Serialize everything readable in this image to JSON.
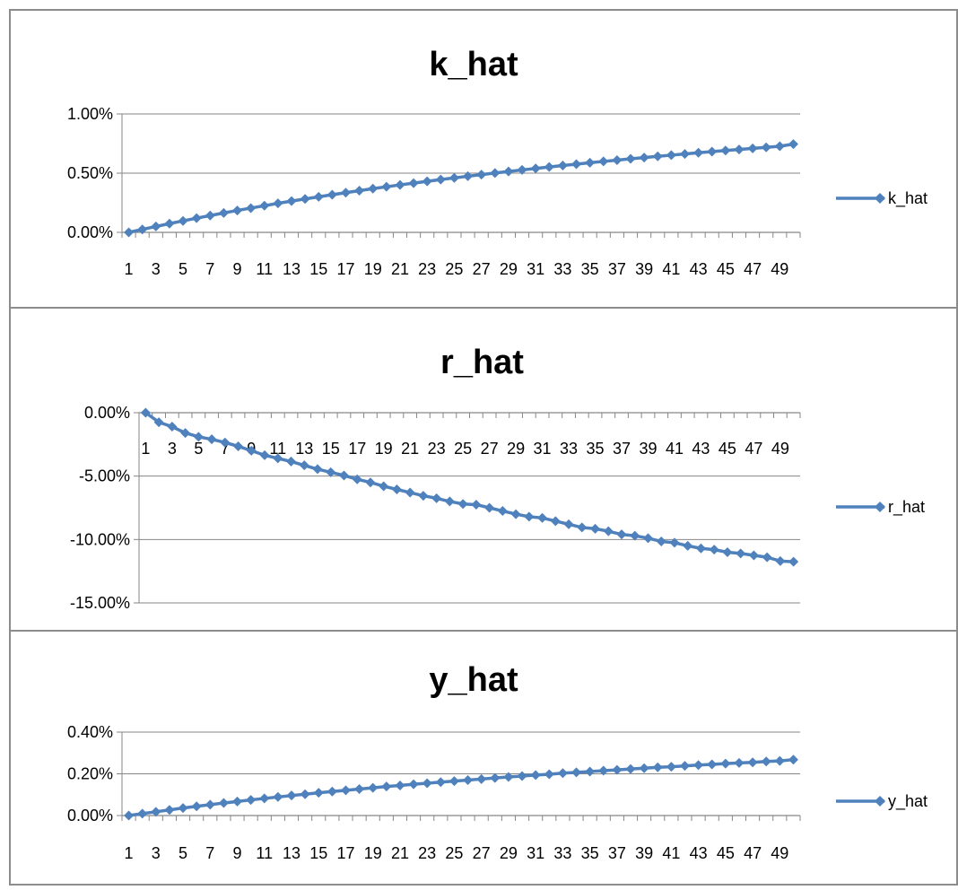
{
  "colors": {
    "series": "#4f81bd",
    "grid": "#868686",
    "axis": "#868686",
    "border": "#8c8c8c"
  },
  "chart_data": [
    {
      "type": "line",
      "title": "k_hat",
      "xlabel": "",
      "ylabel": "",
      "x_tick_labels": [
        "1",
        "3",
        "5",
        "7",
        "9",
        "11",
        "13",
        "15",
        "17",
        "19",
        "21",
        "23",
        "25",
        "27",
        "29",
        "31",
        "33",
        "35",
        "37",
        "39",
        "41",
        "43",
        "45",
        "47",
        "49"
      ],
      "y_tick_labels": [
        "1.00%",
        "0.50%",
        "0.00%"
      ],
      "ylim": [
        0,
        1.0
      ],
      "y_ticks": [
        1.0,
        0.5,
        0.0
      ],
      "y_unit": "percent",
      "grid": true,
      "legend": "right",
      "series": [
        {
          "name": "k_hat",
          "marker": "diamond",
          "x": [
            1,
            2,
            3,
            4,
            5,
            6,
            7,
            8,
            9,
            10,
            11,
            12,
            13,
            14,
            15,
            16,
            17,
            18,
            19,
            20,
            21,
            22,
            23,
            24,
            25,
            26,
            27,
            28,
            29,
            30,
            31,
            32,
            33,
            34,
            35,
            36,
            37,
            38,
            39,
            40,
            41,
            42,
            43,
            44,
            45,
            46,
            47,
            48,
            49,
            50
          ],
          "values": [
            0.0,
            0.025,
            0.05,
            0.074,
            0.097,
            0.12,
            0.142,
            0.164,
            0.185,
            0.205,
            0.225,
            0.245,
            0.264,
            0.282,
            0.3,
            0.318,
            0.335,
            0.352,
            0.369,
            0.385,
            0.401,
            0.416,
            0.431,
            0.446,
            0.46,
            0.474,
            0.488,
            0.501,
            0.514,
            0.527,
            0.54,
            0.552,
            0.564,
            0.576,
            0.588,
            0.599,
            0.61,
            0.621,
            0.632,
            0.642,
            0.652,
            0.662,
            0.672,
            0.682,
            0.691,
            0.7,
            0.709,
            0.718,
            0.727,
            0.745
          ]
        }
      ]
    },
    {
      "type": "line",
      "title": "r_hat",
      "xlabel": "",
      "ylabel": "",
      "x_tick_labels": [
        "1",
        "3",
        "5",
        "7",
        "9",
        "11",
        "13",
        "15",
        "17",
        "19",
        "21",
        "23",
        "25",
        "27",
        "29",
        "31",
        "33",
        "35",
        "37",
        "39",
        "41",
        "43",
        "45",
        "47",
        "49"
      ],
      "y_tick_labels": [
        "0.00%",
        "-5.00%",
        "-10.00%",
        "-15.00%"
      ],
      "ylim": [
        -15.0,
        0.0
      ],
      "y_ticks": [
        0.0,
        -5.0,
        -10.0,
        -15.0
      ],
      "y_unit": "percent",
      "grid": true,
      "legend": "right",
      "series": [
        {
          "name": "r_hat",
          "marker": "diamond",
          "x": [
            1,
            2,
            3,
            4,
            5,
            6,
            7,
            8,
            9,
            10,
            11,
            12,
            13,
            14,
            15,
            16,
            17,
            18,
            19,
            20,
            21,
            22,
            23,
            24,
            25,
            26,
            27,
            28,
            29,
            30,
            31,
            32,
            33,
            34,
            35,
            36,
            37,
            38,
            39,
            40,
            41,
            42,
            43,
            44,
            45,
            46,
            47,
            48,
            49,
            50
          ],
          "values": [
            0.0,
            -0.75,
            -1.1,
            -1.6,
            -1.9,
            -2.1,
            -2.35,
            -2.65,
            -3.0,
            -3.35,
            -3.6,
            -3.85,
            -4.15,
            -4.45,
            -4.7,
            -4.95,
            -5.25,
            -5.5,
            -5.8,
            -6.05,
            -6.3,
            -6.55,
            -6.75,
            -7.0,
            -7.2,
            -7.25,
            -7.5,
            -7.75,
            -8.0,
            -8.2,
            -8.3,
            -8.55,
            -8.8,
            -9.05,
            -9.15,
            -9.35,
            -9.6,
            -9.7,
            -9.9,
            -10.15,
            -10.25,
            -10.5,
            -10.7,
            -10.8,
            -11.0,
            -11.1,
            -11.25,
            -11.4,
            -11.7,
            -11.75
          ]
        }
      ]
    },
    {
      "type": "line",
      "title": "y_hat",
      "xlabel": "",
      "ylabel": "",
      "x_tick_labels": [
        "1",
        "3",
        "5",
        "7",
        "9",
        "11",
        "13",
        "15",
        "17",
        "19",
        "21",
        "23",
        "25",
        "27",
        "29",
        "31",
        "33",
        "35",
        "37",
        "39",
        "41",
        "43",
        "45",
        "47",
        "49"
      ],
      "y_tick_labels": [
        "0.40%",
        "0.20%",
        "0.00%"
      ],
      "ylim": [
        0,
        0.4
      ],
      "y_ticks": [
        0.4,
        0.2,
        0.0
      ],
      "y_unit": "percent",
      "grid": true,
      "legend": "right",
      "series": [
        {
          "name": "y_hat",
          "marker": "diamond",
          "x": [
            1,
            2,
            3,
            4,
            5,
            6,
            7,
            8,
            9,
            10,
            11,
            12,
            13,
            14,
            15,
            16,
            17,
            18,
            19,
            20,
            21,
            22,
            23,
            24,
            25,
            26,
            27,
            28,
            29,
            30,
            31,
            32,
            33,
            34,
            35,
            36,
            37,
            38,
            39,
            40,
            41,
            42,
            43,
            44,
            45,
            46,
            47,
            48,
            49,
            50
          ],
          "values": [
            0.0,
            0.009,
            0.018,
            0.027,
            0.036,
            0.044,
            0.052,
            0.06,
            0.067,
            0.075,
            0.082,
            0.089,
            0.096,
            0.102,
            0.109,
            0.115,
            0.121,
            0.127,
            0.133,
            0.139,
            0.144,
            0.15,
            0.155,
            0.16,
            0.165,
            0.17,
            0.175,
            0.18,
            0.185,
            0.189,
            0.194,
            0.198,
            0.203,
            0.207,
            0.211,
            0.215,
            0.219,
            0.223,
            0.227,
            0.231,
            0.234,
            0.238,
            0.242,
            0.245,
            0.249,
            0.252,
            0.255,
            0.259,
            0.262,
            0.268
          ]
        }
      ]
    }
  ]
}
